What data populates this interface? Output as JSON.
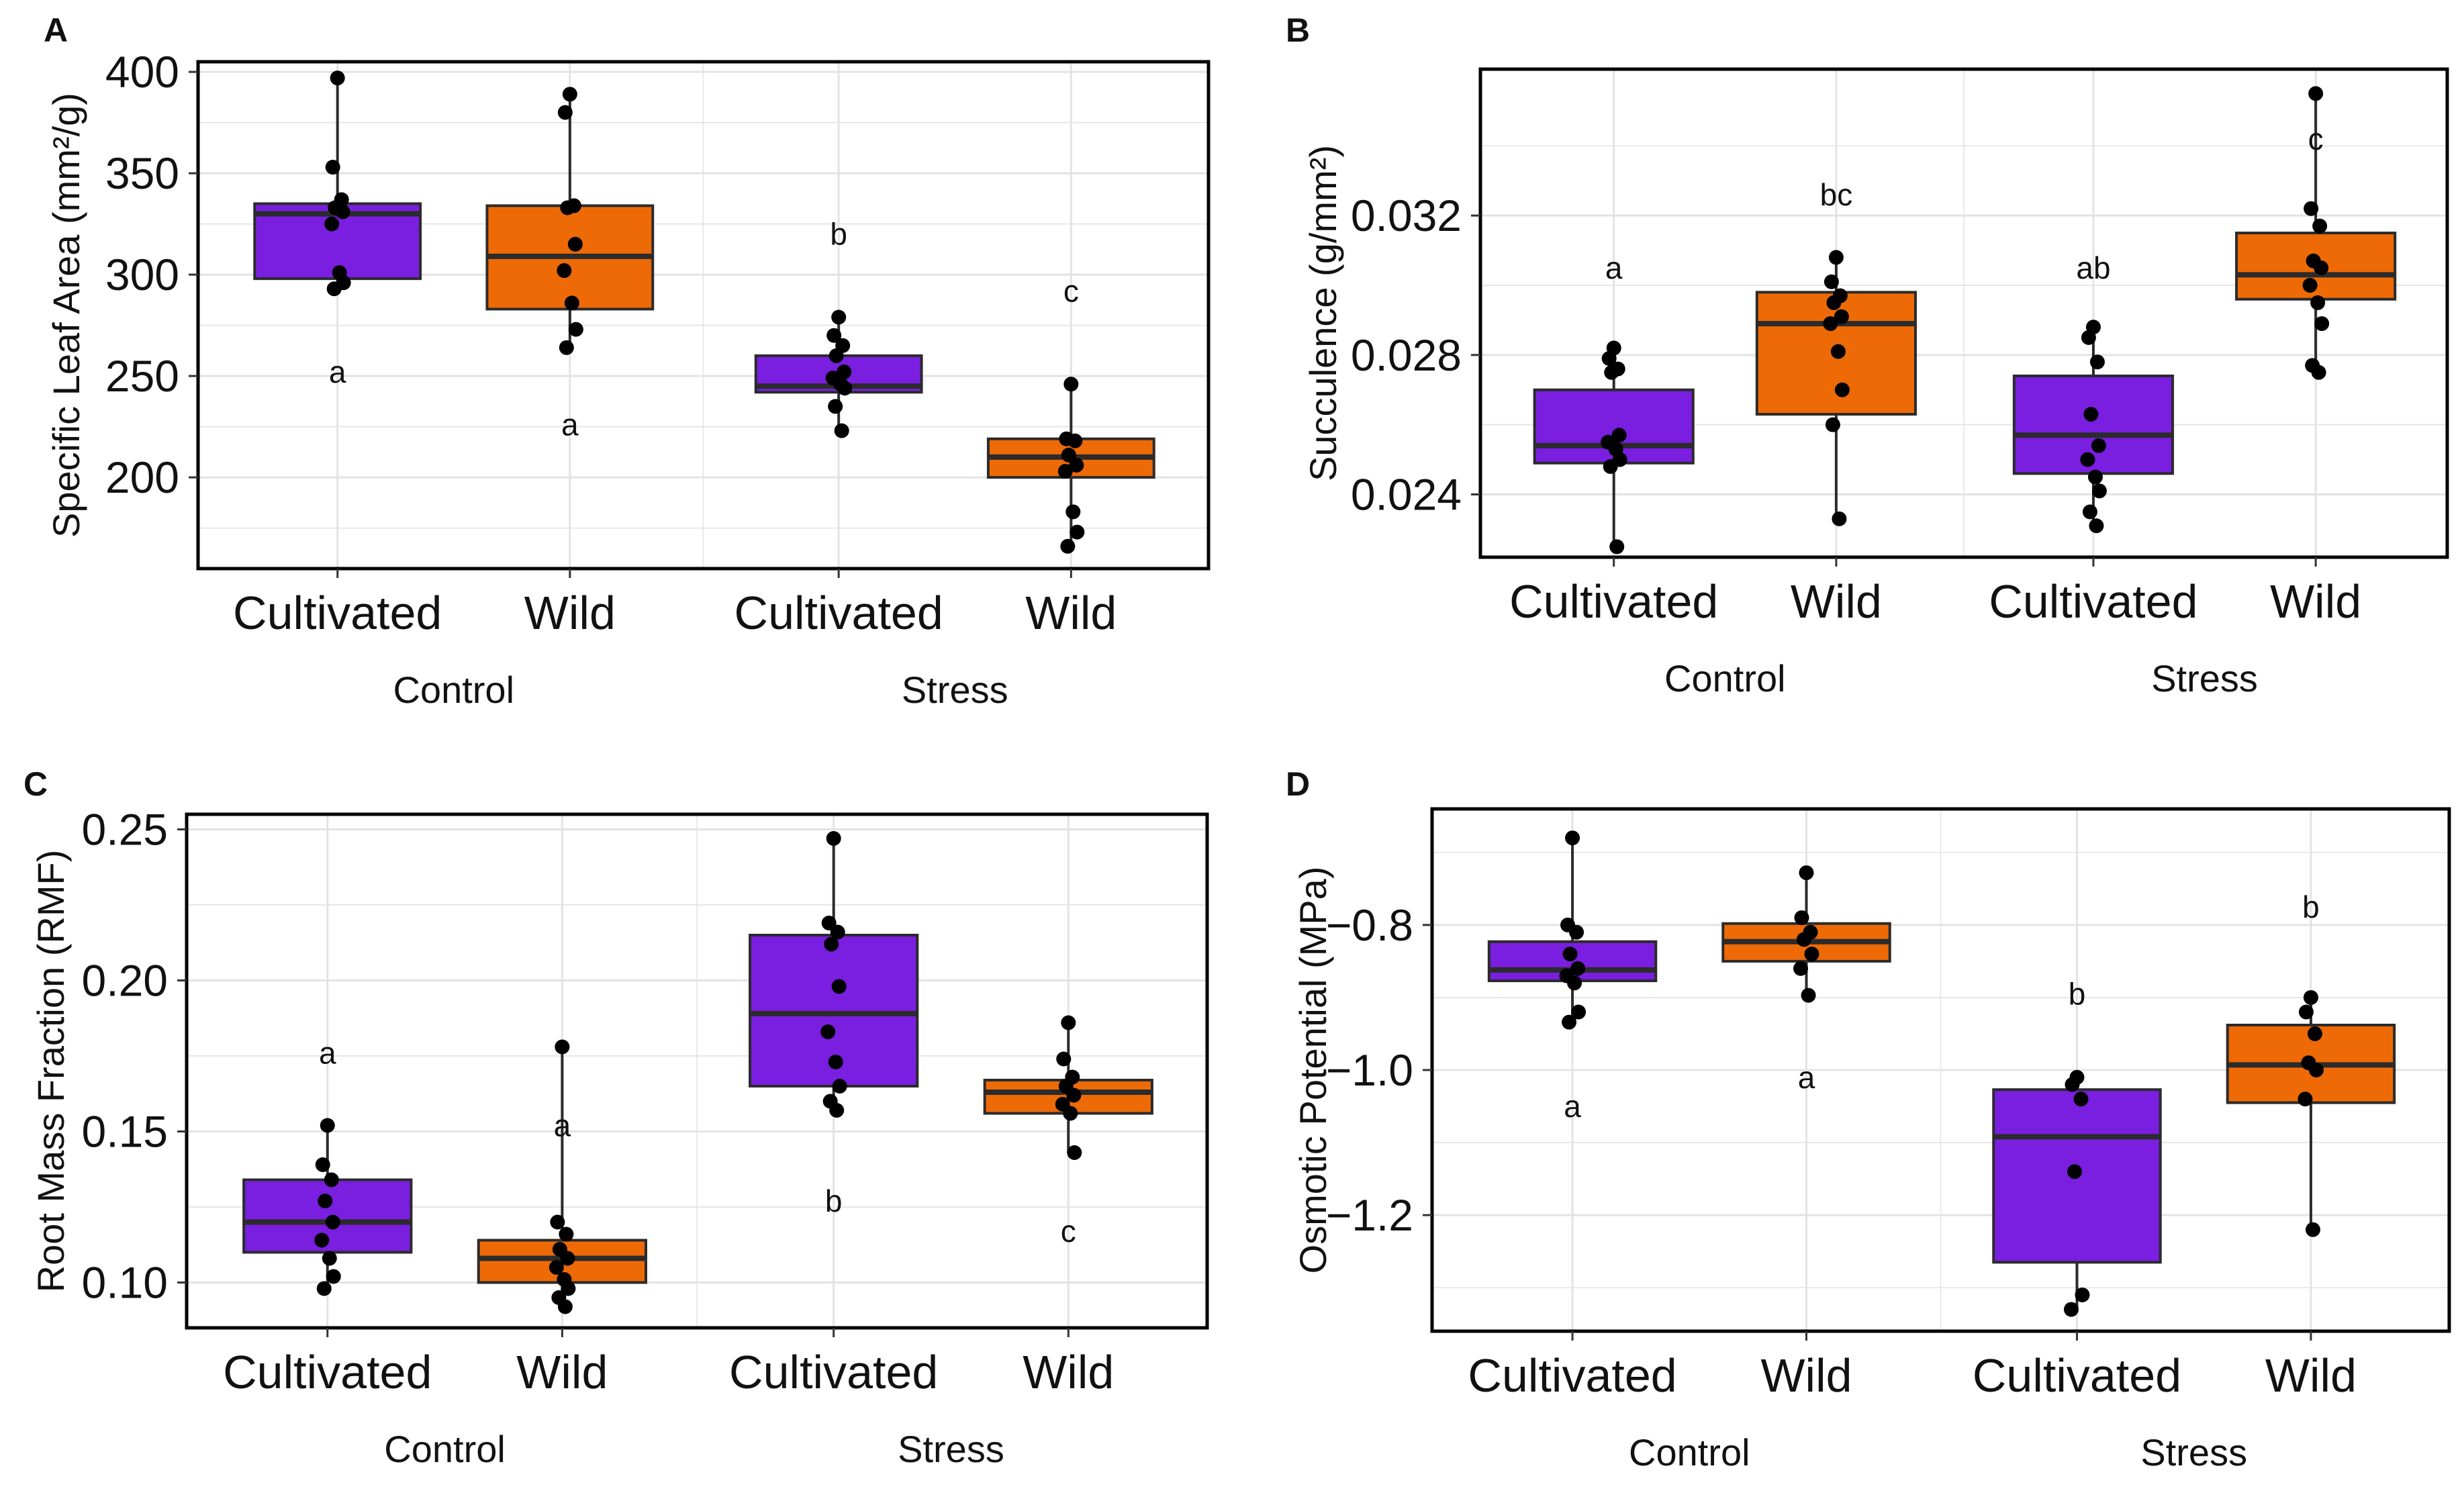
{
  "figure": {
    "panel_letters": [
      "A",
      "B",
      "C",
      "D"
    ]
  },
  "colors": {
    "cultivated": "#7a1ee0",
    "wild": "#ee6a06",
    "box_stroke": "#2b2b2b",
    "point": "#000000",
    "grid": "#e3e3e3",
    "border": "#000000"
  },
  "chart_data": [
    {
      "panel": "A",
      "type": "box",
      "title": "",
      "ylabel": "Specific Leaf Area (mm²/g)",
      "ylim": [
        155,
        405
      ],
      "yticks": [
        200,
        250,
        300,
        350,
        400
      ],
      "ytick_labels": [
        "200",
        "250",
        "300",
        "350",
        "400"
      ],
      "groups": [
        "Control",
        "Stress"
      ],
      "categories": [
        "Cultivated",
        "Wild",
        "Cultivated",
        "Wild"
      ],
      "boxes": [
        {
          "group": "Control",
          "category": "Cultivated",
          "q1": 298,
          "median": 330,
          "q3": 335,
          "whisker_low": 293,
          "whisker_high": 397,
          "letter": "a",
          "letter_y": 252,
          "points": [
            397,
            353,
            337,
            333,
            331,
            325,
            301,
            296,
            293
          ]
        },
        {
          "group": "Control",
          "category": "Wild",
          "q1": 283,
          "median": 309,
          "q3": 334,
          "whisker_low": 264,
          "whisker_high": 389,
          "letter": "a",
          "letter_y": 226,
          "points": [
            389,
            380,
            334,
            333,
            315,
            302,
            286,
            273,
            264
          ]
        },
        {
          "group": "Stress",
          "category": "Cultivated",
          "q1": 242,
          "median": 245,
          "q3": 260,
          "whisker_low": 223,
          "whisker_high": 279,
          "letter": "b",
          "letter_y": 320,
          "points": [
            279,
            270,
            265,
            260,
            252,
            249,
            246,
            244,
            235,
            223
          ]
        },
        {
          "group": "Stress",
          "category": "Wild",
          "q1": 200,
          "median": 210,
          "q3": 219,
          "whisker_low": 166,
          "whisker_high": 246,
          "letter": "c",
          "letter_y": 292,
          "points": [
            246,
            219,
            218,
            211,
            206,
            203,
            183,
            173,
            166
          ]
        }
      ]
    },
    {
      "panel": "B",
      "type": "box",
      "title": "",
      "ylabel": "Succulence (g/mm²)",
      "ylim": [
        0.0222,
        0.0362
      ],
      "yticks": [
        0.024,
        0.028,
        0.032
      ],
      "ytick_labels": [
        "0.024",
        "0.028",
        "0.032"
      ],
      "groups": [
        "Control",
        "Stress"
      ],
      "categories": [
        "Cultivated",
        "Wild",
        "Cultivated",
        "Wild"
      ],
      "boxes": [
        {
          "group": "Control",
          "category": "Cultivated",
          "q1": 0.0249,
          "median": 0.0254,
          "q3": 0.027,
          "whisker_low": 0.0225,
          "whisker_high": 0.0282,
          "letter": "a",
          "letter_y": 0.0305,
          "points": [
            0.0282,
            0.0279,
            0.0276,
            0.0275,
            0.0257,
            0.0255,
            0.0253,
            0.025,
            0.0248,
            0.0225
          ]
        },
        {
          "group": "Control",
          "category": "Wild",
          "q1": 0.0263,
          "median": 0.0289,
          "q3": 0.0298,
          "whisker_low": 0.0233,
          "whisker_high": 0.0308,
          "letter": "bc",
          "letter_y": 0.0326,
          "points": [
            0.0308,
            0.0301,
            0.0297,
            0.0295,
            0.0291,
            0.0289,
            0.0281,
            0.027,
            0.026,
            0.0233
          ]
        },
        {
          "group": "Stress",
          "category": "Cultivated",
          "q1": 0.0246,
          "median": 0.0257,
          "q3": 0.0274,
          "whisker_low": 0.0231,
          "whisker_high": 0.0288,
          "letter": "ab",
          "letter_y": 0.0305,
          "points": [
            0.0288,
            0.0285,
            0.0278,
            0.0263,
            0.0254,
            0.025,
            0.0245,
            0.0241,
            0.0235,
            0.0231
          ]
        },
        {
          "group": "Stress",
          "category": "Wild",
          "q1": 0.0296,
          "median": 0.0303,
          "q3": 0.0315,
          "whisker_low": 0.0275,
          "whisker_high": 0.0355,
          "letter": "c",
          "letter_y": 0.0342,
          "points": [
            0.0355,
            0.0322,
            0.0317,
            0.0307,
            0.0305,
            0.03,
            0.0295,
            0.0289,
            0.0277,
            0.0275
          ]
        }
      ]
    },
    {
      "panel": "C",
      "type": "box",
      "title": "",
      "ylabel": "Root Mass Fraction (RMF)",
      "ylim": [
        0.085,
        0.255
      ],
      "yticks": [
        0.1,
        0.15,
        0.2,
        0.25
      ],
      "ytick_labels": [
        "0.10",
        "0.15",
        "0.20",
        "0.25"
      ],
      "groups": [
        "Control",
        "Stress"
      ],
      "categories": [
        "Cultivated",
        "Wild",
        "Cultivated",
        "Wild"
      ],
      "boxes": [
        {
          "group": "Control",
          "category": "Cultivated",
          "q1": 0.11,
          "median": 0.12,
          "q3": 0.134,
          "whisker_low": 0.098,
          "whisker_high": 0.152,
          "letter": "a",
          "letter_y": 0.176,
          "points": [
            0.152,
            0.139,
            0.134,
            0.127,
            0.12,
            0.114,
            0.108,
            0.102,
            0.098
          ]
        },
        {
          "group": "Control",
          "category": "Wild",
          "q1": 0.1,
          "median": 0.108,
          "q3": 0.114,
          "whisker_low": 0.092,
          "whisker_high": 0.178,
          "letter": "a",
          "letter_y": 0.152,
          "points": [
            0.178,
            0.12,
            0.116,
            0.111,
            0.108,
            0.105,
            0.101,
            0.098,
            0.095,
            0.092
          ]
        },
        {
          "group": "Stress",
          "category": "Cultivated",
          "q1": 0.165,
          "median": 0.189,
          "q3": 0.215,
          "whisker_low": 0.157,
          "whisker_high": 0.247,
          "letter": "b",
          "letter_y": 0.127,
          "points": [
            0.247,
            0.219,
            0.216,
            0.212,
            0.198,
            0.183,
            0.173,
            0.165,
            0.16,
            0.157
          ]
        },
        {
          "group": "Stress",
          "category": "Wild",
          "q1": 0.156,
          "median": 0.163,
          "q3": 0.167,
          "whisker_low": 0.143,
          "whisker_high": 0.186,
          "letter": "c",
          "letter_y": 0.117,
          "points": [
            0.186,
            0.174,
            0.168,
            0.165,
            0.162,
            0.159,
            0.156,
            0.143
          ]
        }
      ]
    },
    {
      "panel": "D",
      "type": "box",
      "title": "",
      "ylabel": "Osmotic Potential (MPa)",
      "ylim": [
        -1.36,
        -0.64
      ],
      "yticks": [
        -1.2,
        -1.0,
        -0.8
      ],
      "ytick_labels": [
        "−1.2",
        "−1.0",
        "−0.8"
      ],
      "groups": [
        "Control",
        "Stress"
      ],
      "categories": [
        "Cultivated",
        "Wild",
        "Cultivated",
        "Wild"
      ],
      "boxes": [
        {
          "group": "Control",
          "category": "Cultivated",
          "q1": -0.877,
          "median": -0.862,
          "q3": -0.823,
          "whisker_low": -0.934,
          "whisker_high": -0.68,
          "letter": "a",
          "letter_y": -1.05,
          "points": [
            -0.68,
            -0.8,
            -0.81,
            -0.84,
            -0.86,
            -0.87,
            -0.88,
            -0.92,
            -0.934
          ]
        },
        {
          "group": "Control",
          "category": "Wild",
          "q1": -0.85,
          "median": -0.823,
          "q3": -0.798,
          "whisker_low": -0.897,
          "whisker_high": -0.728,
          "letter": "a",
          "letter_y": -1.01,
          "points": [
            -0.728,
            -0.79,
            -0.81,
            -0.82,
            -0.84,
            -0.86,
            -0.897
          ]
        },
        {
          "group": "Stress",
          "category": "Cultivated",
          "q1": -1.265,
          "median": -1.092,
          "q3": -1.027,
          "whisker_low": -1.33,
          "whisker_high": -1.01,
          "letter": "b",
          "letter_y": -0.895,
          "points": [
            -1.01,
            -1.02,
            -1.04,
            -1.14,
            -1.31,
            -1.33
          ]
        },
        {
          "group": "Stress",
          "category": "Wild",
          "q1": -1.045,
          "median": -0.993,
          "q3": -0.938,
          "whisker_low": -1.22,
          "whisker_high": -0.9,
          "letter": "b",
          "letter_y": -0.775,
          "points": [
            -0.9,
            -0.92,
            -0.95,
            -0.99,
            -1.0,
            -1.04,
            -1.22
          ]
        }
      ]
    }
  ]
}
